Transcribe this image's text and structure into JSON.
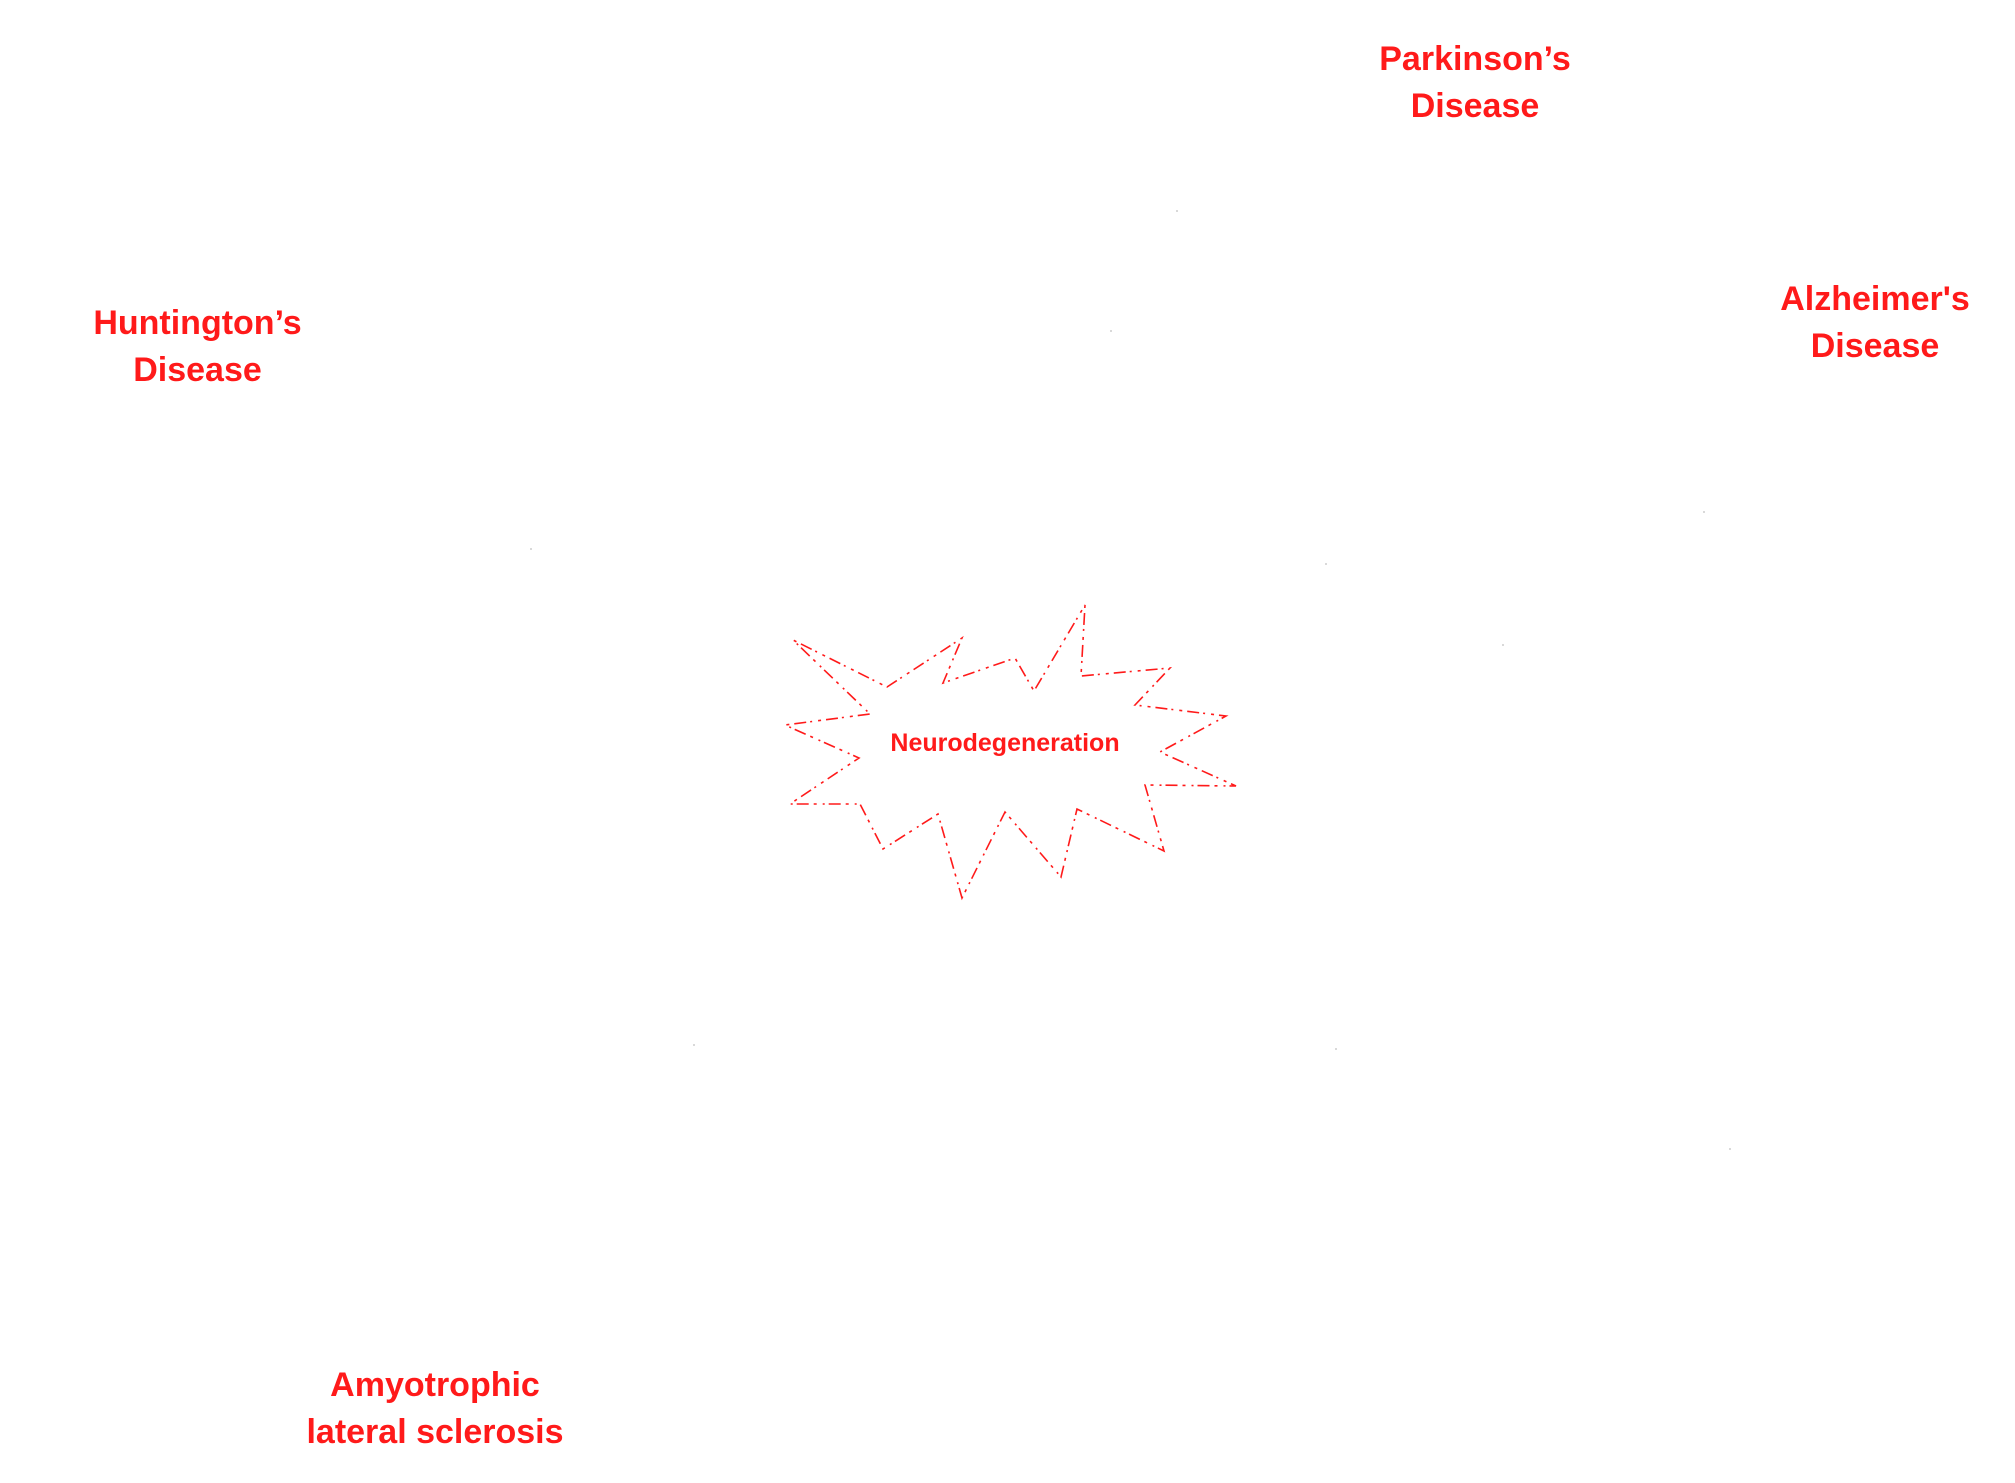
{
  "diagram": {
    "center": {
      "label": "Neurodegeneration"
    },
    "nodes": [
      {
        "id": "parkinsons",
        "lines": [
          "Parkinson’s",
          "Disease"
        ]
      },
      {
        "id": "alzheimers",
        "lines": [
          "Alzheimer's",
          "Disease"
        ]
      },
      {
        "id": "huntingtons",
        "lines": [
          "Huntington’s",
          "Disease"
        ]
      },
      {
        "id": "als",
        "lines": [
          "Amyotrophic",
          "lateral sclerosis"
        ]
      }
    ],
    "colors": {
      "text": "#ff1a1a",
      "burst_outline": "#ff1a1a",
      "background": "#ffffff"
    }
  }
}
